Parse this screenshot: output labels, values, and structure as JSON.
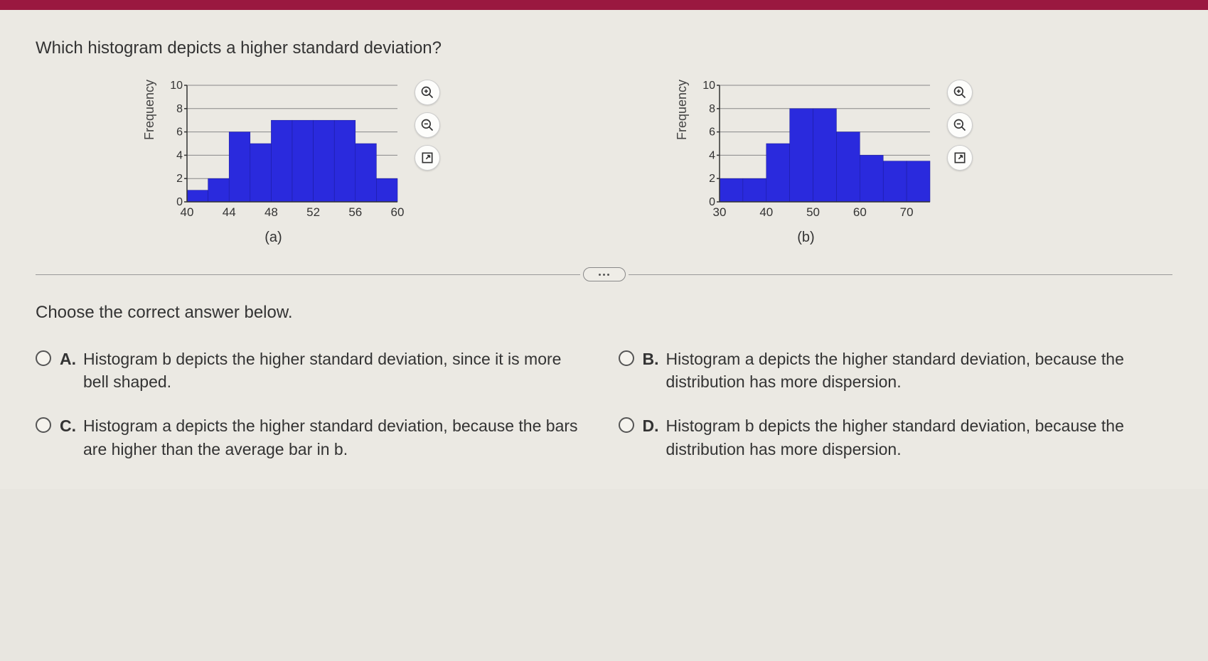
{
  "question": "Which histogram depicts a higher standard deviation?",
  "chart_a": {
    "ylabel": "Frequency",
    "ylim": [
      0,
      10
    ],
    "ytick_step": 2,
    "yticks": [
      0,
      2,
      4,
      6,
      8,
      10
    ],
    "xticks": [
      40,
      44,
      48,
      52,
      56,
      60
    ],
    "caption": "(a)",
    "bar_color": "#2a2add",
    "grid_color": "#888888",
    "bg_color": "#edebe5",
    "bars": [
      {
        "x": 40,
        "h": 1
      },
      {
        "x": 42,
        "h": 2
      },
      {
        "x": 44,
        "h": 6
      },
      {
        "x": 46,
        "h": 5
      },
      {
        "x": 48,
        "h": 7
      },
      {
        "x": 50,
        "h": 7
      },
      {
        "x": 52,
        "h": 7
      },
      {
        "x": 54,
        "h": 7
      },
      {
        "x": 56,
        "h": 5
      },
      {
        "x": 58,
        "h": 2
      }
    ]
  },
  "chart_b": {
    "ylabel": "Frequency",
    "ylim": [
      0,
      10
    ],
    "ytick_step": 2,
    "yticks": [
      0,
      2,
      4,
      6,
      8,
      10
    ],
    "xticks": [
      30,
      40,
      50,
      60,
      70
    ],
    "xrange": [
      30,
      75
    ],
    "caption": "(b)",
    "bar_color": "#2a2add",
    "grid_color": "#888888",
    "bg_color": "#edebe5",
    "bars": [
      {
        "x": 30,
        "h": 2
      },
      {
        "x": 35,
        "h": 2
      },
      {
        "x": 40,
        "h": 5
      },
      {
        "x": 45,
        "h": 8
      },
      {
        "x": 50,
        "h": 8
      },
      {
        "x": 55,
        "h": 6
      },
      {
        "x": 60,
        "h": 4
      },
      {
        "x": 65,
        "h": 3.5
      },
      {
        "x": 70,
        "h": 3.5
      }
    ]
  },
  "choose_text": "Choose the correct answer below.",
  "options": {
    "a": {
      "letter": "A.",
      "text": "Histogram b depicts the higher standard deviation, since it is more bell shaped."
    },
    "b": {
      "letter": "B.",
      "text": "Histogram a depicts the higher standard deviation, because the distribution has more dispersion."
    },
    "c": {
      "letter": "C.",
      "text": "Histogram a depicts the higher standard deviation, because the bars are higher than the average bar in b."
    },
    "d": {
      "letter": "D.",
      "text": "Histogram b depicts the higher standard deviation, because the distribution has more dispersion."
    }
  }
}
